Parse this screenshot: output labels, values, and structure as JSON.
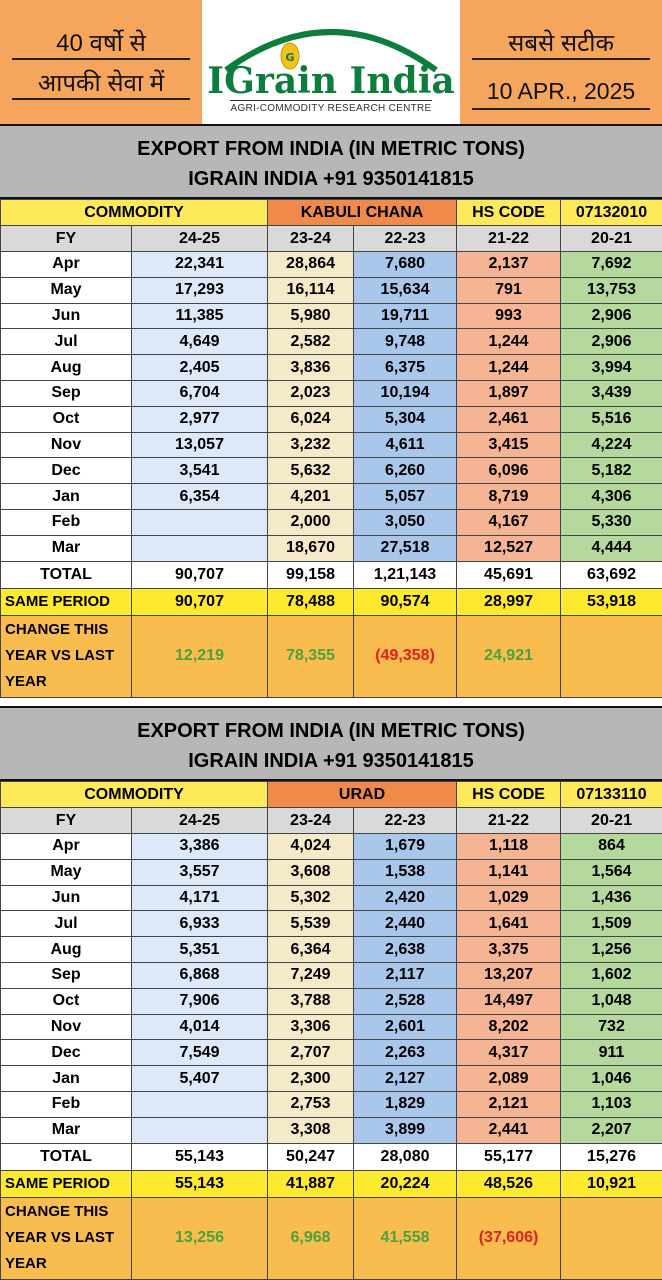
{
  "header": {
    "tagline_line1": "40 वर्षो से",
    "tagline_line2": "आपकी सेवा में",
    "logo_name": "IGrain India",
    "logo_subtitle": "AGRI-COMMODITY RESEARCH CENTRE",
    "slogan": "सबसे सटीक",
    "date": "10 APR., 2025"
  },
  "colors": {
    "header_orange": "#f5a55c",
    "title_grey": "#b7b7b7",
    "commodity_yellow": "#fde95a",
    "product_orange": "#ef8a4a",
    "positive_green": "#4aa23b",
    "negative_red": "#e02020",
    "logo_green": "#0d7d3b"
  },
  "table_labels": {
    "commodity": "COMMODITY",
    "hs_code": "HS CODE",
    "fy": "FY",
    "total": "TOTAL",
    "same_period": "SAME PERIOD",
    "change_line1": "CHANGE THIS",
    "change_line2": "YEAR VS LAST",
    "change_line3": "YEAR",
    "years": [
      "24-25",
      "23-24",
      "22-23",
      "21-22",
      "20-21"
    ],
    "months": [
      "Apr",
      "May",
      "Jun",
      "Jul",
      "Aug",
      "Sep",
      "Oct",
      "Nov",
      "Dec",
      "Jan",
      "Feb",
      "Mar"
    ]
  },
  "sections": [
    {
      "title_line1": "EXPORT FROM INDIA (IN METRIC TONS)",
      "title_line2": "IGRAIN INDIA +91 9350141815",
      "product": "KABULI CHANA",
      "hs_code": "07132010",
      "rows": [
        [
          "22,341",
          "28,864",
          "7,680",
          "2,137",
          "7,692"
        ],
        [
          "17,293",
          "16,114",
          "15,634",
          "791",
          "13,753"
        ],
        [
          "11,385",
          "5,980",
          "19,711",
          "993",
          "2,906"
        ],
        [
          "4,649",
          "2,582",
          "9,748",
          "1,244",
          "2,906"
        ],
        [
          "2,405",
          "3,836",
          "6,375",
          "1,244",
          "3,994"
        ],
        [
          "6,704",
          "2,023",
          "10,194",
          "1,897",
          "3,439"
        ],
        [
          "2,977",
          "6,024",
          "5,304",
          "2,461",
          "5,516"
        ],
        [
          "13,057",
          "3,232",
          "4,611",
          "3,415",
          "4,224"
        ],
        [
          "3,541",
          "5,632",
          "6,260",
          "6,096",
          "5,182"
        ],
        [
          "6,354",
          "4,201",
          "5,057",
          "8,719",
          "4,306"
        ],
        [
          "",
          "2,000",
          "3,050",
          "4,167",
          "5,330"
        ],
        [
          "",
          "18,670",
          "27,518",
          "12,527",
          "4,444"
        ]
      ],
      "total": [
        "90,707",
        "99,158",
        "1,21,143",
        "45,691",
        "63,692"
      ],
      "same_period": [
        "90,707",
        "78,488",
        "90,574",
        "28,997",
        "53,918"
      ],
      "change": [
        "12,219",
        "78,355",
        "(49,358)",
        "24,921",
        ""
      ]
    },
    {
      "title_line1": "EXPORT FROM INDIA (IN METRIC TONS)",
      "title_line2": "IGRAIN INDIA +91 9350141815",
      "product": "URAD",
      "hs_code": "07133110",
      "rows": [
        [
          "3,386",
          "4,024",
          "1,679",
          "1,118",
          "864"
        ],
        [
          "3,557",
          "3,608",
          "1,538",
          "1,141",
          "1,564"
        ],
        [
          "4,171",
          "5,302",
          "2,420",
          "1,029",
          "1,436"
        ],
        [
          "6,933",
          "5,539",
          "2,440",
          "1,641",
          "1,509"
        ],
        [
          "5,351",
          "6,364",
          "2,638",
          "3,375",
          "1,256"
        ],
        [
          "6,868",
          "7,249",
          "2,117",
          "13,207",
          "1,602"
        ],
        [
          "7,906",
          "3,788",
          "2,528",
          "14,497",
          "1,048"
        ],
        [
          "4,014",
          "3,306",
          "2,601",
          "8,202",
          "732"
        ],
        [
          "7,549",
          "2,707",
          "2,263",
          "4,317",
          "911"
        ],
        [
          "5,407",
          "2,300",
          "2,127",
          "2,089",
          "1,046"
        ],
        [
          "",
          "2,753",
          "1,829",
          "2,121",
          "1,103"
        ],
        [
          "",
          "3,308",
          "3,899",
          "2,441",
          "2,207"
        ]
      ],
      "total": [
        "55,143",
        "50,247",
        "28,080",
        "55,177",
        "15,276"
      ],
      "same_period": [
        "55,143",
        "41,887",
        "20,224",
        "48,526",
        "10,921"
      ],
      "change": [
        "13,256",
        "6,968",
        "41,558",
        "(37,606)",
        ""
      ]
    }
  ]
}
